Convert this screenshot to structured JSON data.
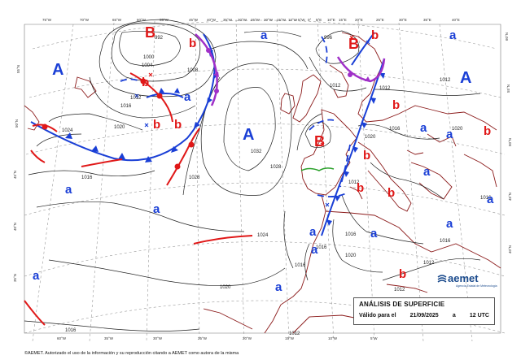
{
  "title": "ANÁLISIS DE SUPERFICIE",
  "valid_label": "Válido para el",
  "valid_date": "21/09/2025",
  "valid_sep": "a",
  "valid_time": "12 UTC",
  "copyright": "©AEMET. Autorizado el uso de la información y su reproducción citando a AEMET como autora de la misma",
  "logo": {
    "word": "aemet",
    "subtitle": "Agencia Estatal de Meteorología"
  },
  "centers": [
    {
      "kind": "high",
      "label": "A"
    },
    {
      "kind": "high",
      "label": "A"
    },
    {
      "kind": "high",
      "label": "A"
    },
    {
      "kind": "low",
      "label": "B"
    },
    {
      "kind": "low",
      "label": "B"
    },
    {
      "kind": "low",
      "label": "B"
    }
  ],
  "relative_labels": [
    "a",
    "a",
    "a",
    "a",
    "a",
    "a",
    "a",
    "a",
    "a",
    "a",
    "a",
    "a",
    "a",
    "a",
    "a",
    "b",
    "b",
    "b",
    "b",
    "b",
    "b",
    "b",
    "b",
    "b",
    "b",
    "b"
  ],
  "isobar_labels": [
    "992",
    "996",
    "1000",
    "1004",
    "1008",
    "1012",
    "1016",
    "1020",
    "1024",
    "1028",
    "1032",
    "1012",
    "1016",
    "1020",
    "1024",
    "1028",
    "1012",
    "1016",
    "1020",
    "1012",
    "1016",
    "1016",
    "1020",
    "1016",
    "1020",
    "1016",
    "1012",
    "1016",
    "1012",
    "1012",
    "1016",
    "1012"
  ],
  "lon_labels": [
    "75°W",
    "70°W",
    "65°W",
    "60°W",
    "55°W",
    "45°W",
    "40°W",
    "35°W",
    "30°W",
    "25°W",
    "20°W",
    "15°W",
    "10°W",
    "5°W",
    "0°",
    "5°E",
    "10°E",
    "15°E",
    "20°E",
    "25°E",
    "30°E",
    "35°E",
    "40°E"
  ],
  "lat_labels": [
    "60°N",
    "55°N",
    "50°N",
    "45°N",
    "40°N",
    "35°N",
    "30°N",
    "25°N",
    "20°N"
  ],
  "bottom_lon_labels": [
    "60°W",
    "35°W",
    "30°W",
    "25°W",
    "20°W",
    "15°W",
    "10°W",
    "5°W"
  ],
  "colors": {
    "high": "#1a3fd6",
    "low": "#e01818",
    "cold_front": "#1a3fd6",
    "warm_front": "#e01818",
    "occluded": "#a030c8",
    "coast": "#8b1a1a",
    "isobar": "#222222"
  }
}
